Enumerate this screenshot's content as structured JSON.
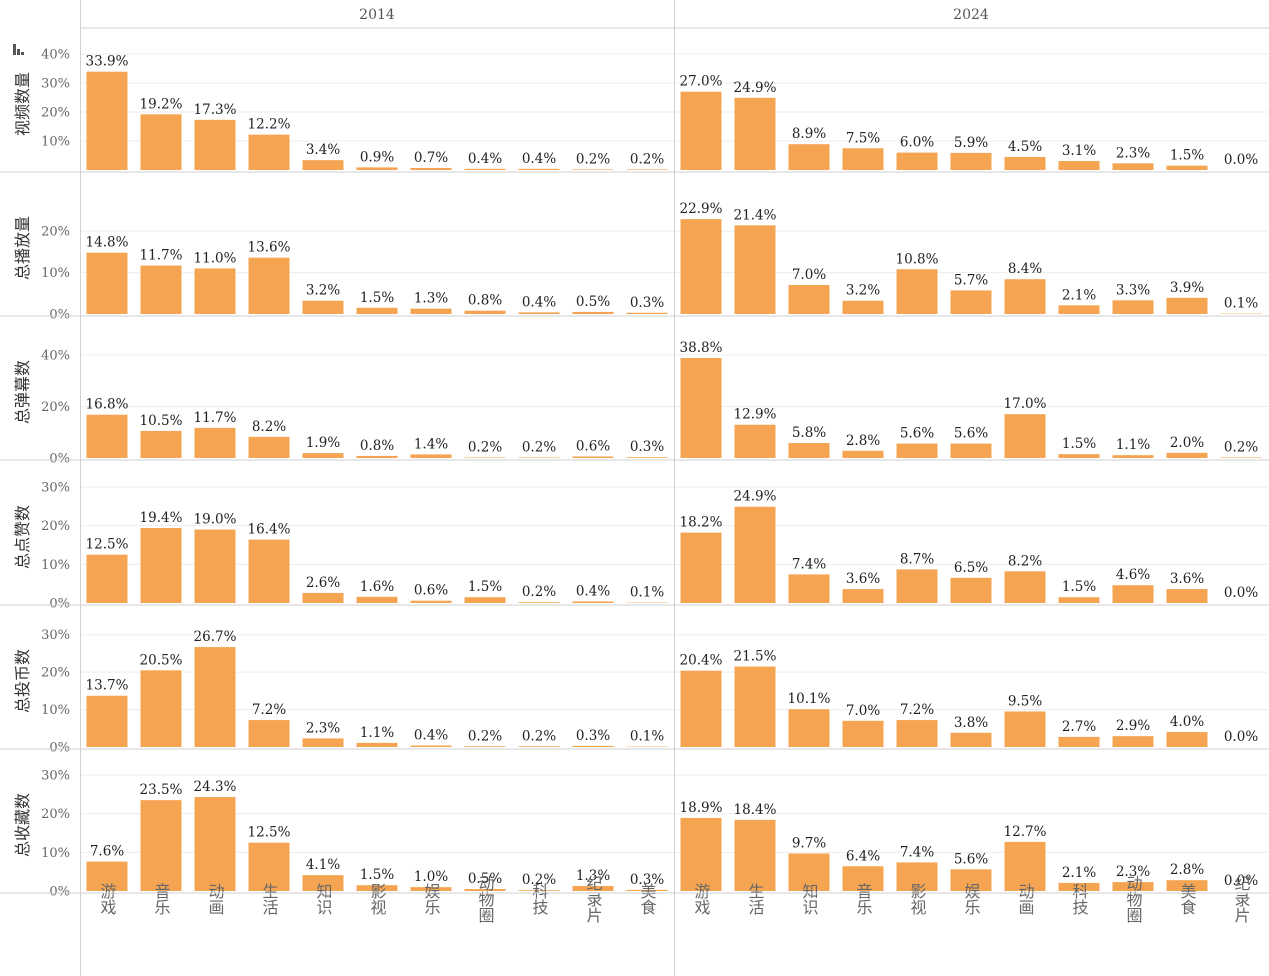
{
  "chart_data": {
    "type": "bar",
    "bar_color": "#F5A551",
    "columns": [
      "2014",
      "2024"
    ],
    "categories": {
      "2014": [
        "游戏",
        "音乐",
        "动画",
        "生活",
        "知识",
        "影视",
        "娱乐",
        "动物圈",
        "科技",
        "纪录片",
        "美食"
      ],
      "2024": [
        "游戏",
        "生活",
        "知识",
        "音乐",
        "影视",
        "娱乐",
        "动画",
        "科技",
        "动物圈",
        "美食",
        "纪录片"
      ]
    },
    "rows": [
      {
        "metric": "视频数量",
        "ticks": [
          "10%",
          "20%",
          "30%",
          "40%"
        ],
        "ylim": [
          0,
          40
        ],
        "values": {
          "2014": [
            33.9,
            19.2,
            17.3,
            12.2,
            3.4,
            0.9,
            0.7,
            0.4,
            0.4,
            0.2,
            0.2
          ],
          "2024": [
            27.0,
            24.9,
            8.9,
            7.5,
            6.0,
            5.9,
            4.5,
            3.1,
            2.3,
            1.5,
            0.0
          ]
        },
        "labels": {
          "2014": [
            "33.9%",
            "19.2%",
            "17.3%",
            "12.2%",
            "3.4%",
            "0.9%",
            "0.7%",
            "0.4%",
            "0.4%",
            "0.2%",
            "0.2%"
          ],
          "2024": [
            "27.0%",
            "24.9%",
            "8.9%",
            "7.5%",
            "6.0%",
            "5.9%",
            "4.5%",
            "3.1%",
            "2.3%",
            "1.5%",
            "0.0%"
          ]
        }
      },
      {
        "metric": "总播放量",
        "ticks": [
          "0%",
          "10%",
          "20%"
        ],
        "ylim": [
          0,
          28
        ],
        "values": {
          "2014": [
            14.8,
            11.7,
            11.0,
            13.6,
            3.2,
            1.5,
            1.3,
            0.8,
            0.4,
            0.5,
            0.3
          ],
          "2024": [
            22.9,
            21.4,
            7.0,
            3.2,
            10.8,
            5.7,
            8.4,
            2.1,
            3.3,
            3.9,
            0.1
          ]
        },
        "labels": {
          "2014": [
            "14.8%",
            "11.7%",
            "11.0%",
            "13.6%",
            "3.2%",
            "1.5%",
            "1.3%",
            "0.8%",
            "0.4%",
            "0.5%",
            "0.3%"
          ],
          "2024": [
            "22.9%",
            "21.4%",
            "7.0%",
            "3.2%",
            "10.8%",
            "5.7%",
            "8.4%",
            "2.1%",
            "3.3%",
            "3.9%",
            "0.1%"
          ]
        }
      },
      {
        "metric": "总弹幕数",
        "ticks": [
          "0%",
          "20%",
          "40%"
        ],
        "ylim": [
          0,
          45
        ],
        "values": {
          "2014": [
            16.8,
            10.5,
            11.7,
            8.2,
            1.9,
            0.8,
            1.4,
            0.2,
            0.2,
            0.6,
            0.3
          ],
          "2024": [
            38.8,
            12.9,
            5.8,
            2.8,
            5.6,
            5.6,
            17.0,
            1.5,
            1.1,
            2.0,
            0.2
          ]
        },
        "labels": {
          "2014": [
            "16.8%",
            "10.5%",
            "11.7%",
            "8.2%",
            "1.9%",
            "0.8%",
            "1.4%",
            "0.2%",
            "0.2%",
            "0.6%",
            "0.3%"
          ],
          "2024": [
            "38.8%",
            "12.9%",
            "5.8%",
            "2.8%",
            "5.6%",
            "5.6%",
            "17.0%",
            "1.5%",
            "1.1%",
            "2.0%",
            "0.2%"
          ]
        }
      },
      {
        "metric": "总点赞数",
        "ticks": [
          "0%",
          "10%",
          "20%",
          "30%"
        ],
        "ylim": [
          0,
          30
        ],
        "values": {
          "2014": [
            12.5,
            19.4,
            19.0,
            16.4,
            2.6,
            1.6,
            0.6,
            1.5,
            0.2,
            0.4,
            0.1
          ],
          "2024": [
            18.2,
            24.9,
            7.4,
            3.6,
            8.7,
            6.5,
            8.2,
            1.5,
            4.6,
            3.6,
            0.0
          ]
        },
        "labels": {
          "2014": [
            "12.5%",
            "19.4%",
            "19.0%",
            "16.4%",
            "2.6%",
            "1.6%",
            "0.6%",
            "1.5%",
            "0.2%",
            "0.4%",
            "0.1%"
          ],
          "2024": [
            "18.2%",
            "24.9%",
            "7.4%",
            "3.6%",
            "8.7%",
            "6.5%",
            "8.2%",
            "1.5%",
            "4.6%",
            "3.6%",
            "0.0%"
          ]
        }
      },
      {
        "metric": "总投币数",
        "ticks": [
          "0%",
          "10%",
          "20%",
          "30%"
        ],
        "ylim": [
          0,
          31
        ],
        "values": {
          "2014": [
            13.7,
            20.5,
            26.7,
            7.2,
            2.3,
            1.1,
            0.4,
            0.2,
            0.2,
            0.3,
            0.1
          ],
          "2024": [
            20.4,
            21.5,
            10.1,
            7.0,
            7.2,
            3.8,
            9.5,
            2.7,
            2.9,
            4.0,
            0.0
          ]
        },
        "labels": {
          "2014": [
            "13.7%",
            "20.5%",
            "26.7%",
            "7.2%",
            "2.3%",
            "1.1%",
            "0.4%",
            "0.2%",
            "0.2%",
            "0.3%",
            "0.1%"
          ],
          "2024": [
            "20.4%",
            "21.5%",
            "10.1%",
            "7.0%",
            "7.2%",
            "3.8%",
            "9.5%",
            "2.7%",
            "2.9%",
            "4.0%",
            "0.0%"
          ]
        }
      },
      {
        "metric": "总收藏数",
        "ticks": [
          "0%",
          "10%",
          "20%",
          "30%"
        ],
        "ylim": [
          0,
          30
        ],
        "values": {
          "2014": [
            7.6,
            23.5,
            24.3,
            12.5,
            4.1,
            1.5,
            1.0,
            0.5,
            0.2,
            1.3,
            0.3
          ],
          "2024": [
            18.9,
            18.4,
            9.7,
            6.4,
            7.4,
            5.6,
            12.7,
            2.1,
            2.3,
            2.8,
            0.0
          ]
        },
        "labels": {
          "2014": [
            "7.6%",
            "23.5%",
            "24.3%",
            "12.5%",
            "4.1%",
            "1.5%",
            "1.0%",
            "0.5%",
            "0.2%",
            "1.3%",
            "0.3%"
          ],
          "2024": [
            "18.9%",
            "18.4%",
            "9.7%",
            "6.4%",
            "7.4%",
            "5.6%",
            "12.7%",
            "2.1%",
            "2.3%",
            "2.8%",
            "0.0%"
          ]
        }
      }
    ]
  }
}
